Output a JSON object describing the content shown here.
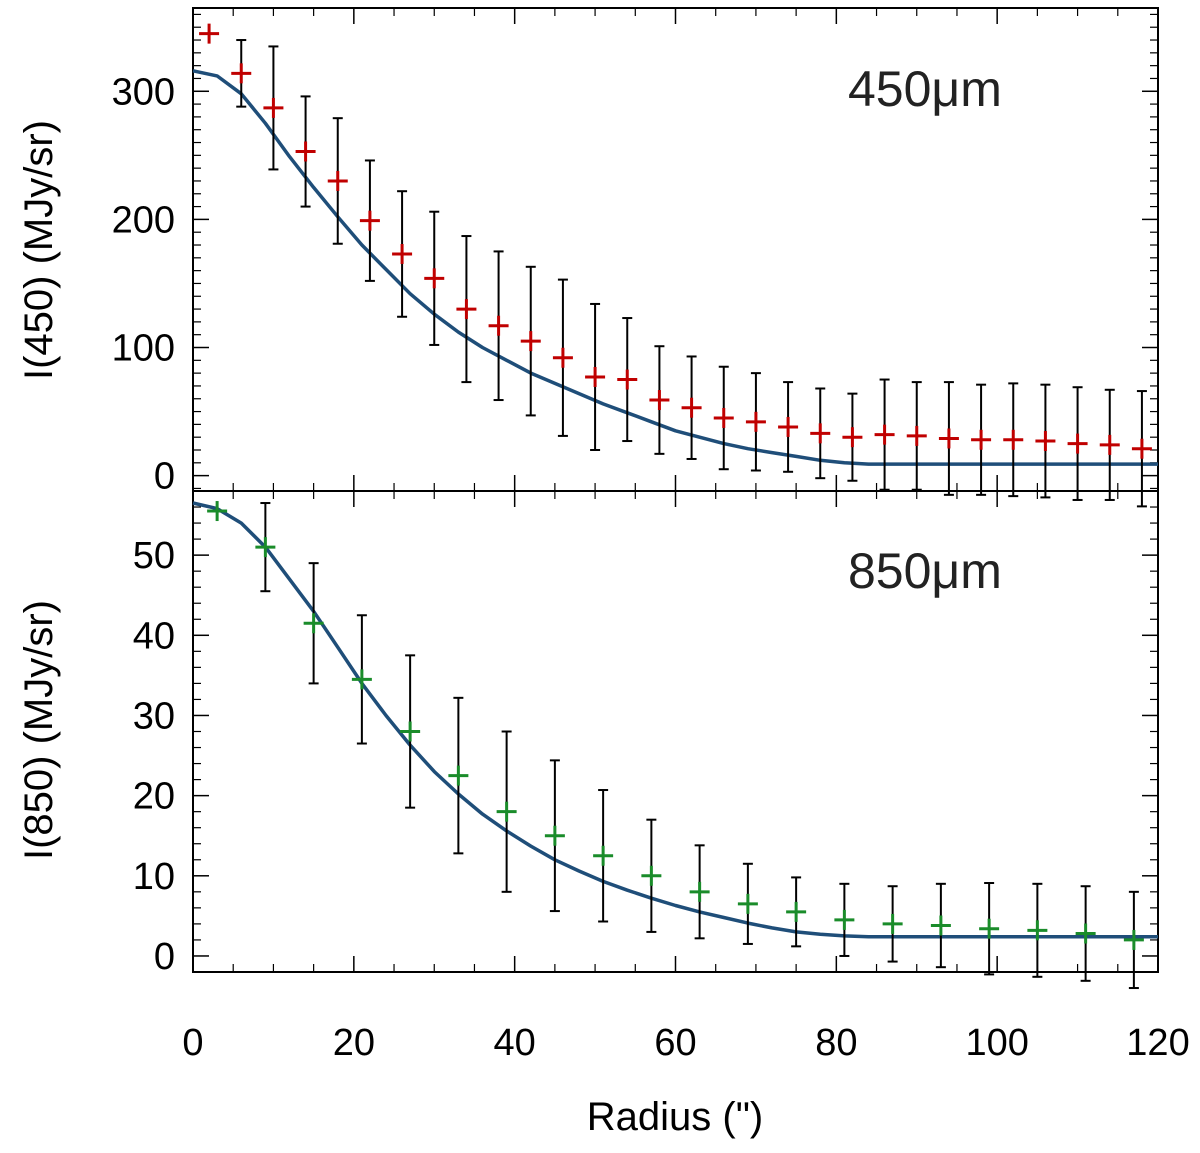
{
  "chart_data": [
    {
      "type": "scatter",
      "panel": "top",
      "label": "450μm",
      "ylabel": "I(450) (MJy/sr)",
      "xlabel": "Radius (\")",
      "xlim": [
        0,
        120
      ],
      "ylim": [
        -12,
        365
      ],
      "yticks": [
        0,
        100,
        200,
        300
      ],
      "xticks": [
        0,
        20,
        40,
        60,
        80,
        100,
        120
      ],
      "xticklabels": [
        "0",
        "20",
        "40",
        "60",
        "80",
        "100",
        "120"
      ],
      "colors": {
        "points": "#c00000",
        "model": "#1f4e79",
        "errorbars": "#000000"
      },
      "series": [
        {
          "name": "data",
          "x": [
            2,
            6,
            10,
            14,
            18,
            22,
            26,
            30,
            34,
            38,
            42,
            46,
            50,
            54,
            58,
            62,
            66,
            70,
            74,
            78,
            82,
            86,
            90,
            94,
            98,
            102,
            106,
            110,
            114,
            118
          ],
          "y": [
            345,
            314,
            287,
            253,
            230,
            199,
            173,
            154,
            130,
            117,
            105,
            92,
            77,
            75,
            59,
            53,
            45,
            42,
            38,
            33,
            30,
            32,
            31,
            29,
            28,
            28,
            27,
            25,
            24,
            21
          ],
          "err": [
            0,
            26,
            48,
            43,
            49,
            47,
            49,
            52,
            57,
            58,
            58,
            61,
            57,
            48,
            42,
            40,
            40,
            38,
            35,
            35,
            34,
            43,
            42,
            44,
            43,
            44,
            44,
            44,
            43,
            45
          ]
        },
        {
          "name": "model",
          "x": [
            0,
            3,
            6,
            9,
            12,
            15,
            18,
            21,
            24,
            27,
            30,
            33,
            36,
            39,
            42,
            45,
            48,
            51,
            54,
            57,
            60,
            63,
            66,
            69,
            72,
            75,
            78,
            81,
            84,
            87,
            90,
            120
          ],
          "y": [
            316,
            312,
            298,
            275,
            249,
            225,
            202,
            180,
            161,
            142,
            126,
            112,
            100,
            90,
            80,
            72,
            64,
            56,
            49,
            42,
            35,
            30,
            25,
            21,
            18,
            15,
            12,
            10,
            9,
            9,
            9,
            9
          ]
        }
      ]
    },
    {
      "type": "scatter",
      "panel": "bottom",
      "label": "850μm",
      "ylabel": "I(850) (MJy/sr)",
      "xlabel": "Radius (\")",
      "xlim": [
        0,
        120
      ],
      "ylim": [
        -2,
        58
      ],
      "yticks": [
        0,
        10,
        20,
        30,
        40,
        50
      ],
      "xticks": [
        0,
        20,
        40,
        60,
        80,
        100,
        120
      ],
      "xticklabels": [
        "0",
        "20",
        "40",
        "60",
        "80",
        "100",
        "120"
      ],
      "colors": {
        "points": "#1a8c2a",
        "model": "#1f4e79",
        "errorbars": "#000000"
      },
      "series": [
        {
          "name": "data",
          "x": [
            3,
            9,
            15,
            21,
            27,
            33,
            39,
            45,
            51,
            57,
            63,
            69,
            75,
            81,
            87,
            93,
            99,
            105,
            111,
            117
          ],
          "y": [
            55.5,
            51,
            41.5,
            34.5,
            28,
            22.5,
            18,
            15,
            12.5,
            10,
            8,
            6.5,
            5.5,
            4.5,
            4,
            3.8,
            3.4,
            3.2,
            2.8,
            2
          ],
          "err": [
            0,
            5.5,
            7.5,
            8,
            9.5,
            9.7,
            10,
            9.4,
            8.2,
            7,
            5.8,
            5,
            4.3,
            4.5,
            4.7,
            5.2,
            5.7,
            5.8,
            5.9,
            6
          ]
        },
        {
          "name": "model",
          "x": [
            0,
            3,
            6,
            9,
            12,
            15,
            18,
            21,
            24,
            27,
            30,
            33,
            36,
            39,
            42,
            45,
            48,
            51,
            54,
            57,
            60,
            63,
            66,
            69,
            72,
            75,
            78,
            81,
            84,
            87,
            120
          ],
          "y": [
            56.5,
            55.8,
            54,
            51,
            47,
            43,
            38.5,
            34,
            30,
            26.3,
            23,
            20.2,
            17.7,
            15.6,
            13.7,
            12,
            10.6,
            9.3,
            8.2,
            7.2,
            6.3,
            5.5,
            4.8,
            4.1,
            3.5,
            3,
            2.7,
            2.5,
            2.4,
            2.4,
            2.4
          ]
        }
      ]
    }
  ]
}
